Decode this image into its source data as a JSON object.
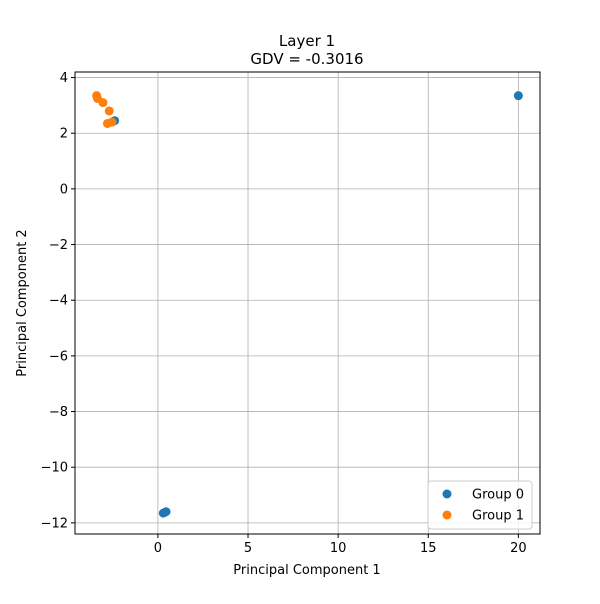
{
  "chart_data": {
    "type": "scatter",
    "title_line1": "Layer 1",
    "title_line2": "GDV = -0.3016",
    "xlabel": "Principal Component 1",
    "ylabel": "Principal Component 2",
    "xlim": [
      -4.6,
      21.2
    ],
    "ylim": [
      -12.4,
      4.2
    ],
    "x_ticks": [
      0,
      5,
      10,
      15,
      20
    ],
    "x_tick_labels": [
      "0",
      "5",
      "10",
      "15",
      "20"
    ],
    "y_ticks": [
      4,
      2,
      0,
      -2,
      -4,
      -6,
      -8,
      -10,
      -12
    ],
    "y_tick_labels": [
      "4",
      "2",
      "0",
      "−2",
      "−4",
      "−6",
      "−8",
      "−10",
      "−12"
    ],
    "grid": true,
    "legend_position": "lower-right",
    "series": [
      {
        "name": "Group 0",
        "color": "#1f77b4",
        "points": [
          [
            -2.4,
            2.45
          ],
          [
            20.0,
            3.35
          ],
          [
            0.3,
            -11.65
          ],
          [
            0.45,
            -11.6
          ]
        ]
      },
      {
        "name": "Group 1",
        "color": "#ff7f0e",
        "points": [
          [
            -3.4,
            3.35
          ],
          [
            -3.35,
            3.25
          ],
          [
            -3.05,
            3.1
          ],
          [
            -2.7,
            2.8
          ],
          [
            -2.8,
            2.35
          ],
          [
            -2.55,
            2.4
          ]
        ]
      }
    ]
  }
}
